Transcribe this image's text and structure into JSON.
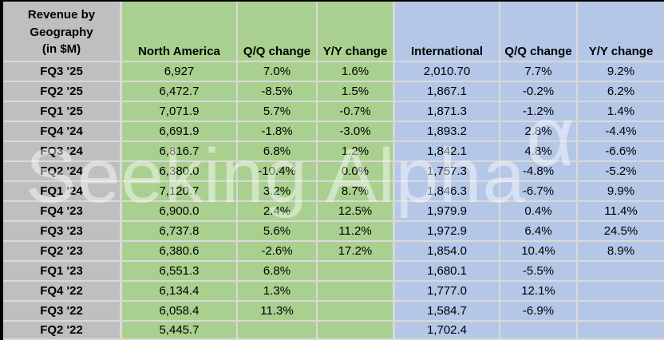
{
  "table": {
    "corner_title_lines": [
      "Revenue by",
      "Geography",
      "(in $M)"
    ],
    "column_headers": [
      "North America",
      "Q/Q change",
      "Y/Y change",
      "International",
      "Q/Q change",
      "Y/Y change"
    ]
  },
  "watermark": {
    "text": "Seeking Alpha",
    "alpha_glyph": "α"
  },
  "colors": {
    "gray_fill": "#bfbfbf",
    "green_fill": "#a9d08e",
    "blue_fill": "#b4c7e7",
    "grid": "#d9d9d9",
    "outer_border": "#000000",
    "text": "#000000",
    "watermark": "rgba(255,255,255,0.45)"
  },
  "chart_data": {
    "type": "table",
    "title": "Revenue by Geography (in $M)",
    "columns": [
      "Revenue by Geography (in $M)",
      "North America",
      "Q/Q change",
      "Y/Y change",
      "International",
      "Q/Q change",
      "Y/Y change"
    ],
    "rows": [
      [
        "FQ3 '25",
        "6,927",
        "7.0%",
        "1.6%",
        "2,010.70",
        "7.7%",
        "9.2%"
      ],
      [
        "FQ2 '25",
        "6,472.7",
        "-8.5%",
        "1.5%",
        "1,867.1",
        "-0.2%",
        "6.2%"
      ],
      [
        "FQ1 '25",
        "7,071.9",
        "5.7%",
        "-0.7%",
        "1,871.3",
        "-1.2%",
        "1.4%"
      ],
      [
        "FQ4 '24",
        "6,691.9",
        "-1.8%",
        "-3.0%",
        "1,893.2",
        "2.8%",
        "-4.4%"
      ],
      [
        "FQ3 '24",
        "6,816.7",
        "6.8%",
        "1.2%",
        "1,842.1",
        "4.8%",
        "-6.6%"
      ],
      [
        "FQ2 '24",
        "6,380.0",
        "-10.4%",
        "0.0%",
        "1,757.3",
        "-4.8%",
        "-5.2%"
      ],
      [
        "FQ1 '24",
        "7,120.7",
        "3.2%",
        "8.7%",
        "1,846.3",
        "-6.7%",
        "9.9%"
      ],
      [
        "FQ4 '23",
        "6,900.0",
        "2.4%",
        "12.5%",
        "1,979.9",
        "0.4%",
        "11.4%"
      ],
      [
        "FQ3 '23",
        "6,737.8",
        "5.6%",
        "11.2%",
        "1,972.9",
        "6.4%",
        "24.5%"
      ],
      [
        "FQ2 '23",
        "6,380.6",
        "-2.6%",
        "17.2%",
        "1,854.0",
        "10.4%",
        "8.9%"
      ],
      [
        "FQ1 '23",
        "6,551.3",
        "6.8%",
        "",
        "1,680.1",
        "-5.5%",
        ""
      ],
      [
        "FQ4 '22",
        "6,134.4",
        "1.3%",
        "",
        "1,777.0",
        "12.1%",
        ""
      ],
      [
        "FQ3 '22",
        "6,058.4",
        "11.3%",
        "",
        "1,584.7",
        "-6.9%",
        ""
      ],
      [
        "FQ2 '22",
        "5,445.7",
        "",
        "",
        "1,702.4",
        "",
        ""
      ]
    ]
  }
}
